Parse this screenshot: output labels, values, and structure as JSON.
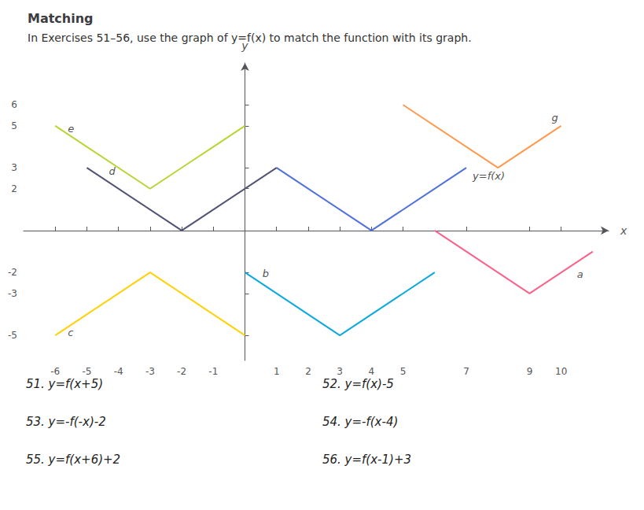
{
  "chart_data": {
    "type": "line",
    "title": "Matching",
    "subtitle": "In Exercises 51–56, use the graph of y=f(x) to match the function with its graph.",
    "xlabel": "x",
    "ylabel": "y",
    "xlim": [
      -7,
      11.5
    ],
    "ylim": [
      -6.2,
      8.0
    ],
    "xticks": [
      -6,
      -5,
      -4,
      -3,
      -2,
      -1,
      1,
      2,
      3,
      4,
      5,
      7,
      9,
      10
    ],
    "yticks": [
      -5,
      -3,
      -2,
      2,
      3,
      5,
      6
    ],
    "grid": false,
    "series": [
      {
        "x": [
          1,
          4,
          7
        ],
        "values": [
          3,
          0,
          3
        ]
      },
      {
        "x": [
          -6,
          -3,
          0
        ],
        "values": [
          5,
          2,
          5
        ]
      },
      {
        "x": [
          -5,
          -2,
          1
        ],
        "values": [
          3,
          0,
          3
        ]
      },
      {
        "x": [
          5,
          8,
          10
        ],
        "values": [
          6,
          3,
          5
        ]
      },
      {
        "x": [
          0,
          3,
          6
        ],
        "values": [
          -2,
          -5,
          -2
        ]
      },
      {
        "x": [
          -6,
          -3,
          0
        ],
        "values": [
          -5,
          -2,
          -5
        ]
      },
      {
        "x": [
          6,
          9,
          11
        ],
        "values": [
          0,
          -3,
          -1
        ]
      }
    ],
    "annotations": [
      {
        "text": "e",
        "x": -5.6,
        "y": 4.85
      },
      {
        "text": "d",
        "x": -4.3,
        "y": 2.85
      },
      {
        "text": "g",
        "x": 9.7,
        "y": 5.4
      },
      {
        "text": "b",
        "x": 0.55,
        "y": -2.05
      },
      {
        "text": "c",
        "x": -5.6,
        "y": -4.85
      },
      {
        "text": "a",
        "x": 10.5,
        "y": -2.1
      },
      {
        "text": "y=f(x)",
        "x": 7.2,
        "y": 2.6
      },
      {
        "text": "51. y=f(x+5)"
      },
      {
        "text": "52. y=f(x)-5"
      },
      {
        "text": "53. y=-f(-x)-2"
      },
      {
        "text": "54. y=-f(x-4)"
      },
      {
        "text": "55. y=f(x+6)+2"
      },
      {
        "text": "56. y=f(x-1)+3"
      }
    ]
  }
}
